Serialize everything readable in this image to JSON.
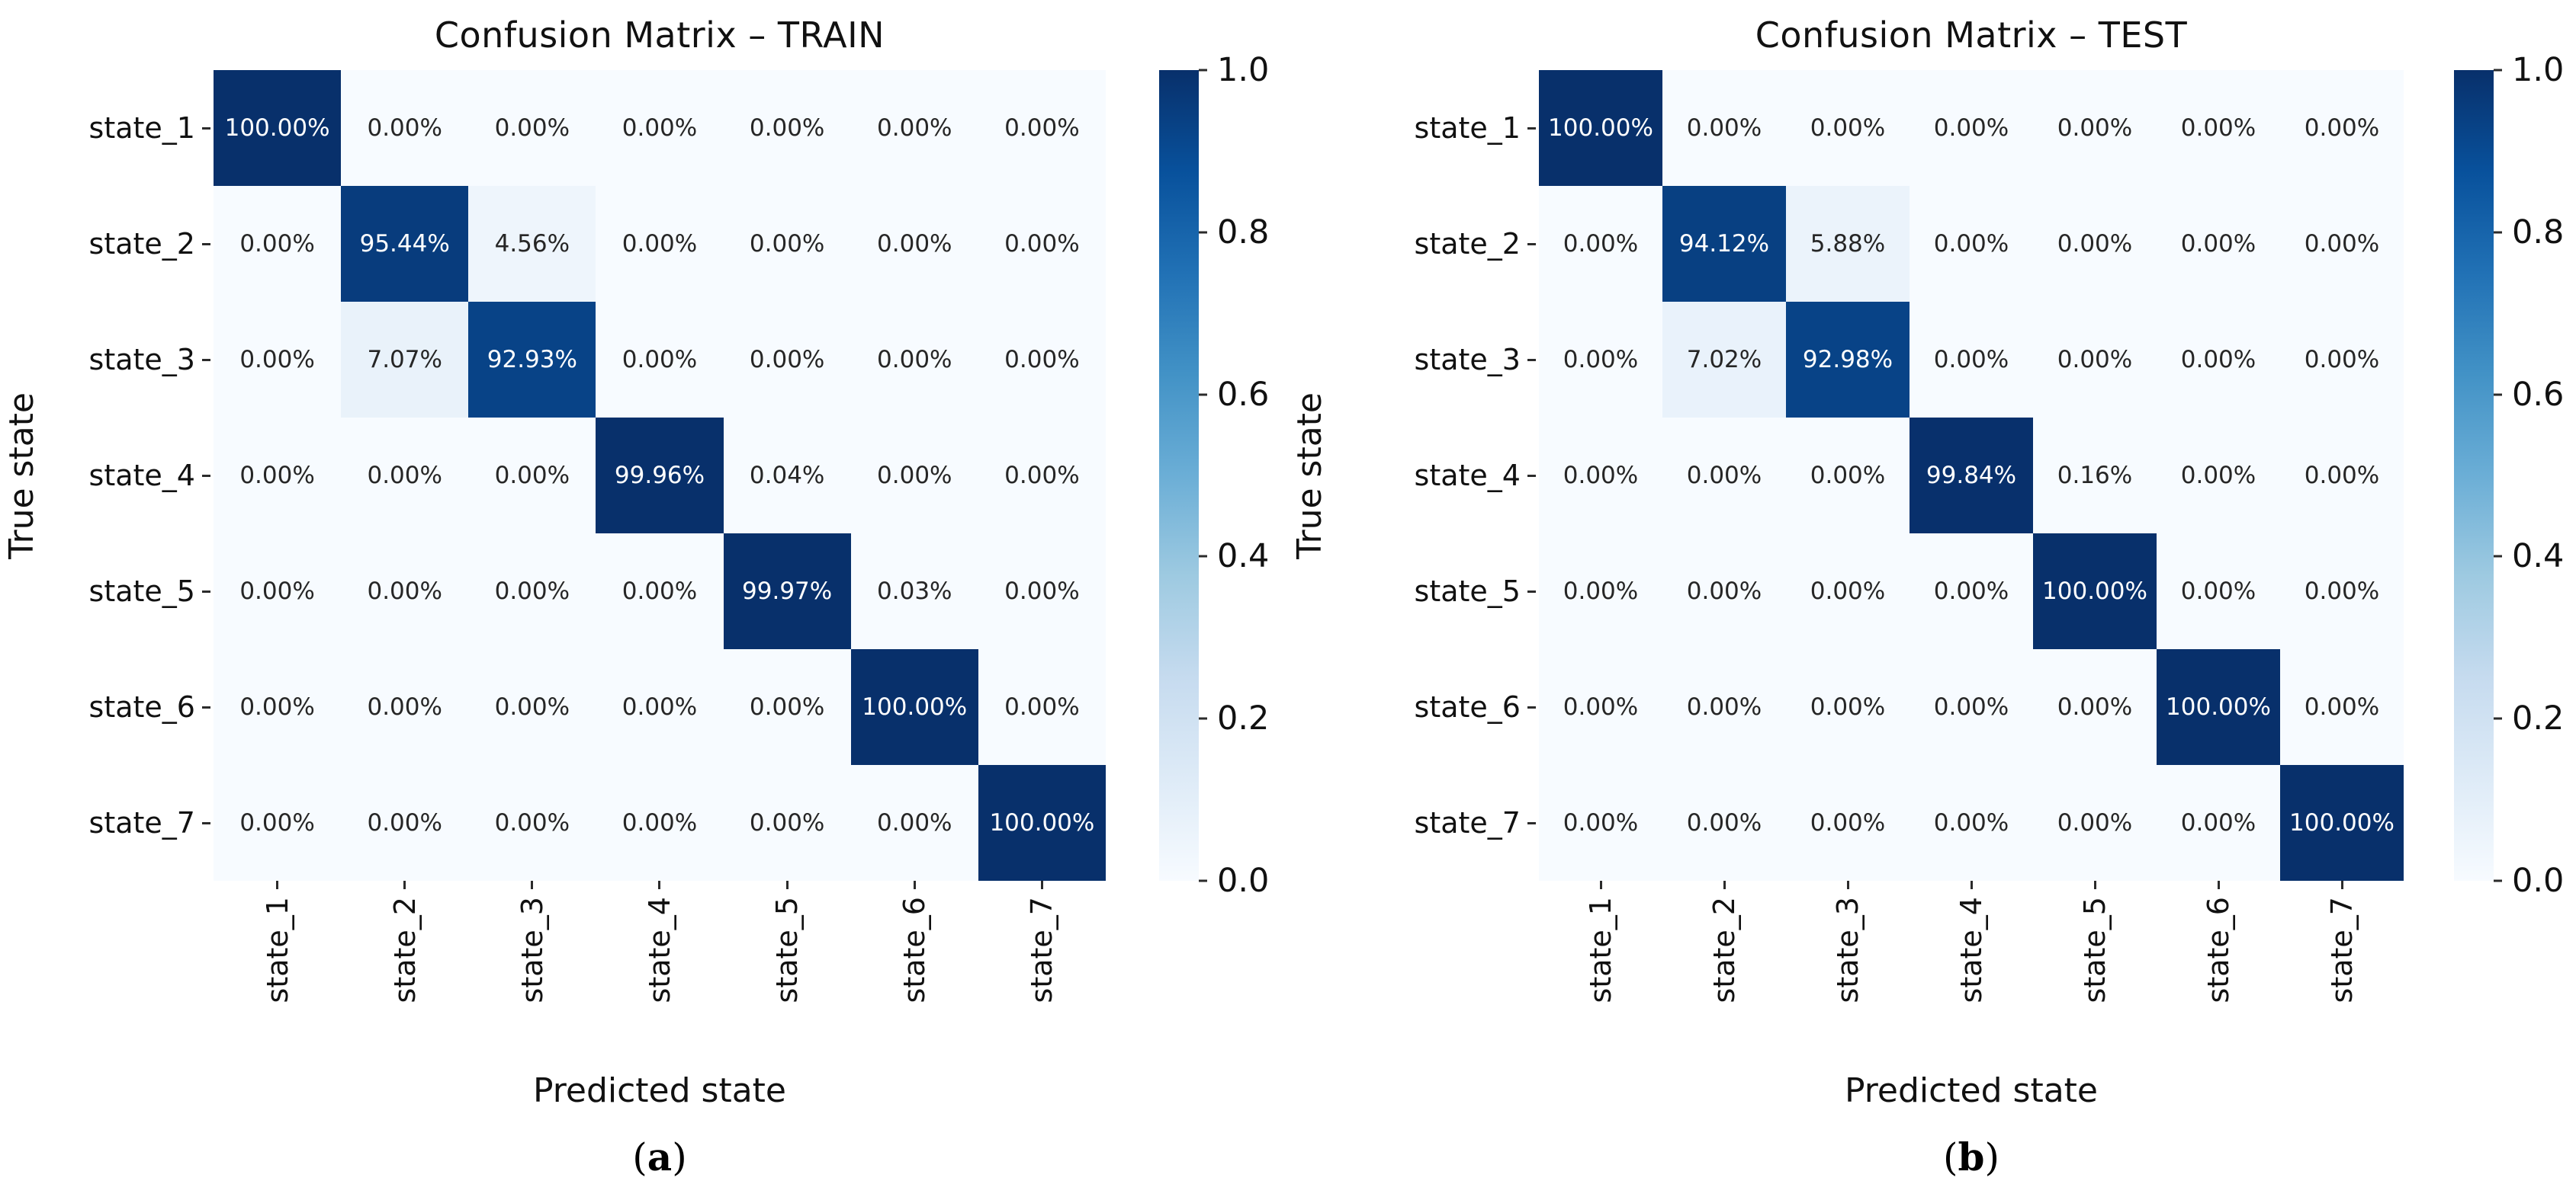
{
  "chart_data": [
    {
      "type": "heatmap",
      "id": "train",
      "title": "Confusion Matrix – TRAIN",
      "xlabel": "Predicted state",
      "ylabel": "True state",
      "x_categories": [
        "state_1",
        "state_2",
        "state_3",
        "state_4",
        "state_5",
        "state_6",
        "state_7"
      ],
      "y_categories": [
        "state_1",
        "state_2",
        "state_3",
        "state_4",
        "state_5",
        "state_6",
        "state_7"
      ],
      "values_percent": [
        [
          100.0,
          0.0,
          0.0,
          0.0,
          0.0,
          0.0,
          0.0
        ],
        [
          0.0,
          95.44,
          4.56,
          0.0,
          0.0,
          0.0,
          0.0
        ],
        [
          0.0,
          7.07,
          92.93,
          0.0,
          0.0,
          0.0,
          0.0
        ],
        [
          0.0,
          0.0,
          0.0,
          99.96,
          0.04,
          0.0,
          0.0
        ],
        [
          0.0,
          0.0,
          0.0,
          0.0,
          99.97,
          0.03,
          0.0
        ],
        [
          0.0,
          0.0,
          0.0,
          0.0,
          0.0,
          100.0,
          0.0
        ],
        [
          0.0,
          0.0,
          0.0,
          0.0,
          0.0,
          0.0,
          100.0
        ]
      ],
      "value_format": "percent_2dp",
      "colormap": "Blues",
      "color_range": [
        0.0,
        1.0
      ],
      "colorbar_ticks": [
        "1.0",
        "0.8",
        "0.6",
        "0.4",
        "0.2",
        "0.0"
      ],
      "colorbar_position": "right",
      "grid": false,
      "caption_open": "(",
      "caption_letter": "a",
      "caption_close": ")"
    },
    {
      "type": "heatmap",
      "id": "test",
      "title": "Confusion Matrix – TEST",
      "xlabel": "Predicted state",
      "ylabel": "True state",
      "x_categories": [
        "state_1",
        "state_2",
        "state_3",
        "state_4",
        "state_5",
        "state_6",
        "state_7"
      ],
      "y_categories": [
        "state_1",
        "state_2",
        "state_3",
        "state_4",
        "state_5",
        "state_6",
        "state_7"
      ],
      "values_percent": [
        [
          100.0,
          0.0,
          0.0,
          0.0,
          0.0,
          0.0,
          0.0
        ],
        [
          0.0,
          94.12,
          5.88,
          0.0,
          0.0,
          0.0,
          0.0
        ],
        [
          0.0,
          7.02,
          92.98,
          0.0,
          0.0,
          0.0,
          0.0
        ],
        [
          0.0,
          0.0,
          0.0,
          99.84,
          0.16,
          0.0,
          0.0
        ],
        [
          0.0,
          0.0,
          0.0,
          0.0,
          100.0,
          0.0,
          0.0
        ],
        [
          0.0,
          0.0,
          0.0,
          0.0,
          0.0,
          100.0,
          0.0
        ],
        [
          0.0,
          0.0,
          0.0,
          0.0,
          0.0,
          0.0,
          100.0
        ]
      ],
      "value_format": "percent_2dp",
      "colormap": "Blues",
      "color_range": [
        0.0,
        1.0
      ],
      "colorbar_ticks": [
        "1.0",
        "0.8",
        "0.6",
        "0.4",
        "0.2",
        "0.0"
      ],
      "colorbar_position": "right",
      "grid": false,
      "caption_open": "(",
      "caption_letter": "b",
      "caption_close": ")"
    }
  ],
  "colors": {
    "blues_anchors": [
      "#f7fbff",
      "#deebf7",
      "#c6dbef",
      "#9ecae1",
      "#6baed6",
      "#4292c6",
      "#2171b5",
      "#08519c",
      "#08306b"
    ],
    "annot_dark": "#262626",
    "annot_light": "#ffffff",
    "tick_mark": "#2b2b2b",
    "text": "#111111",
    "background": "#ffffff"
  }
}
